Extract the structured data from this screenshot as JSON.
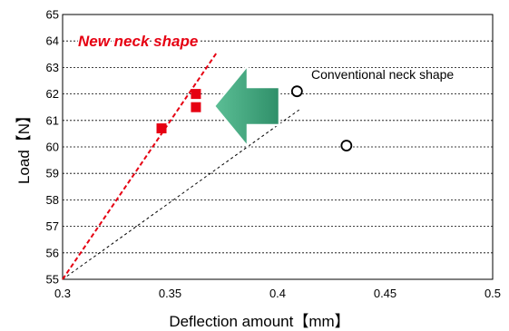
{
  "chart_data": {
    "type": "scatter",
    "xlabel": "Deflection amount【mm】",
    "ylabel": "Load【N】",
    "xlim": [
      0.3,
      0.5
    ],
    "ylim": [
      55,
      65
    ],
    "x_ticks": [
      "0.3",
      "0.35",
      "0.4",
      "0.45",
      "0.5"
    ],
    "y_ticks": [
      "55",
      "56",
      "57",
      "58",
      "59",
      "60",
      "61",
      "62",
      "63",
      "64",
      "65"
    ],
    "grid": "horizontal dashed",
    "colors": {
      "new": "#e60012",
      "conventional": "#000000",
      "arrow": "#3aa57c"
    },
    "series": [
      {
        "name": "New neck shape",
        "marker": "square",
        "points": [
          [
            0.346,
            60.7
          ],
          [
            0.362,
            62.0
          ],
          [
            0.362,
            61.5
          ]
        ],
        "trend": [
          [
            0.3,
            55.0
          ],
          [
            0.372,
            63.6
          ]
        ]
      },
      {
        "name": "Conventional neck shape",
        "marker": "open-circle",
        "points": [
          [
            0.409,
            62.1
          ],
          [
            0.432,
            60.05
          ]
        ],
        "trend": [
          [
            0.3,
            55.0
          ],
          [
            0.41,
            61.4
          ]
        ]
      }
    ],
    "annotations": [
      {
        "text": "New neck shape",
        "series": 0
      },
      {
        "text": "Conventional neck shape",
        "series": 1
      }
    ],
    "arrow": {
      "direction": "left",
      "meaning": "improvement"
    }
  }
}
